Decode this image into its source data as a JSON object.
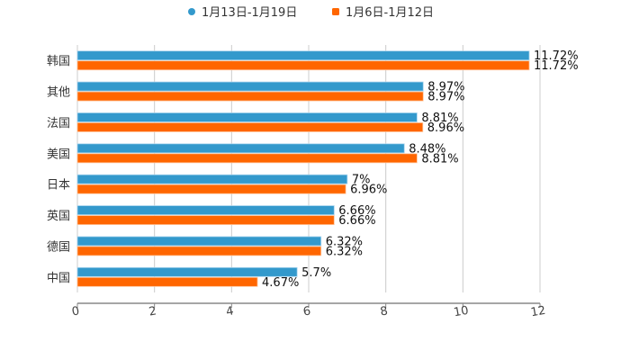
{
  "chart_data": {
    "type": "bar",
    "orientation": "horizontal",
    "title": "",
    "xlabel": "",
    "ylabel": "",
    "xlim": [
      0,
      12
    ],
    "xticks": [
      "0",
      "2",
      "4",
      "6",
      "8",
      "10",
      "12"
    ],
    "grid": true,
    "legend_position": "top-center",
    "categories": [
      "韩国",
      "其他",
      "法国",
      "美国",
      "日本",
      "英国",
      "德国",
      "中国"
    ],
    "series": [
      {
        "name": "1月13日-1月19日",
        "color": "#3399cc",
        "values": [
          11.72,
          8.97,
          8.81,
          8.48,
          7,
          6.66,
          6.32,
          5.7
        ],
        "labels": [
          "11.72%",
          "8.97%",
          "8.81%",
          "8.48%",
          "7%",
          "6.66%",
          "6.32%",
          "5.7%"
        ]
      },
      {
        "name": "1月6日-1月12日",
        "color": "#ff6600",
        "values": [
          11.72,
          8.97,
          8.96,
          8.81,
          6.96,
          6.66,
          6.32,
          4.67
        ],
        "labels": [
          "11.72%",
          "8.97%",
          "8.96%",
          "8.81%",
          "6.96%",
          "6.66%",
          "6.32%",
          "4.67%"
        ]
      }
    ]
  }
}
